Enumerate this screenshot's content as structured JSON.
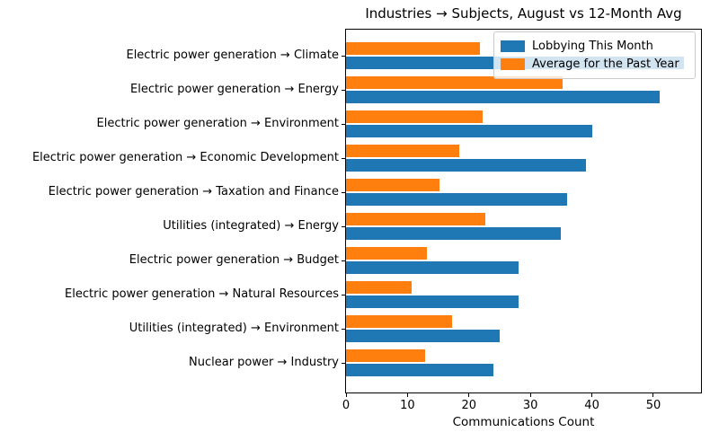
{
  "chart_data": {
    "type": "bar",
    "orientation": "horizontal",
    "title": "Industries → Subjects, August vs 12-Month Avg",
    "xlabel": "Communications Count",
    "ylabel": "",
    "categories": [
      "Electric power generation → Climate",
      "Electric power generation → Energy",
      "Electric power generation → Environment",
      "Electric power generation → Economic Development",
      "Electric power generation → Taxation and Finance",
      "Utilities (integrated) → Energy",
      "Electric power generation → Budget",
      "Electric power generation → Natural Resources",
      "Utilities (integrated) → Environment",
      "Nuclear power → Industry"
    ],
    "series": [
      {
        "name": "Lobbying This Month",
        "color": "#1f77b4",
        "values": [
          55,
          51,
          40,
          39,
          36,
          35,
          28,
          28,
          25,
          24
        ]
      },
      {
        "name": "Average for the Past Year",
        "color": "#ff7f0e",
        "values": [
          21.8,
          35.3,
          22.2,
          18.4,
          15.2,
          22.6,
          13.2,
          10.7,
          17.3,
          12.9
        ]
      }
    ],
    "xlim": [
      0,
      57.75
    ],
    "xticks": [
      0,
      10,
      20,
      30,
      40,
      50
    ],
    "legend_position": "upper right",
    "grid": false,
    "colors": {
      "axis": "#000000",
      "legend_border": "#cccccc",
      "background": "#ffffff"
    }
  }
}
